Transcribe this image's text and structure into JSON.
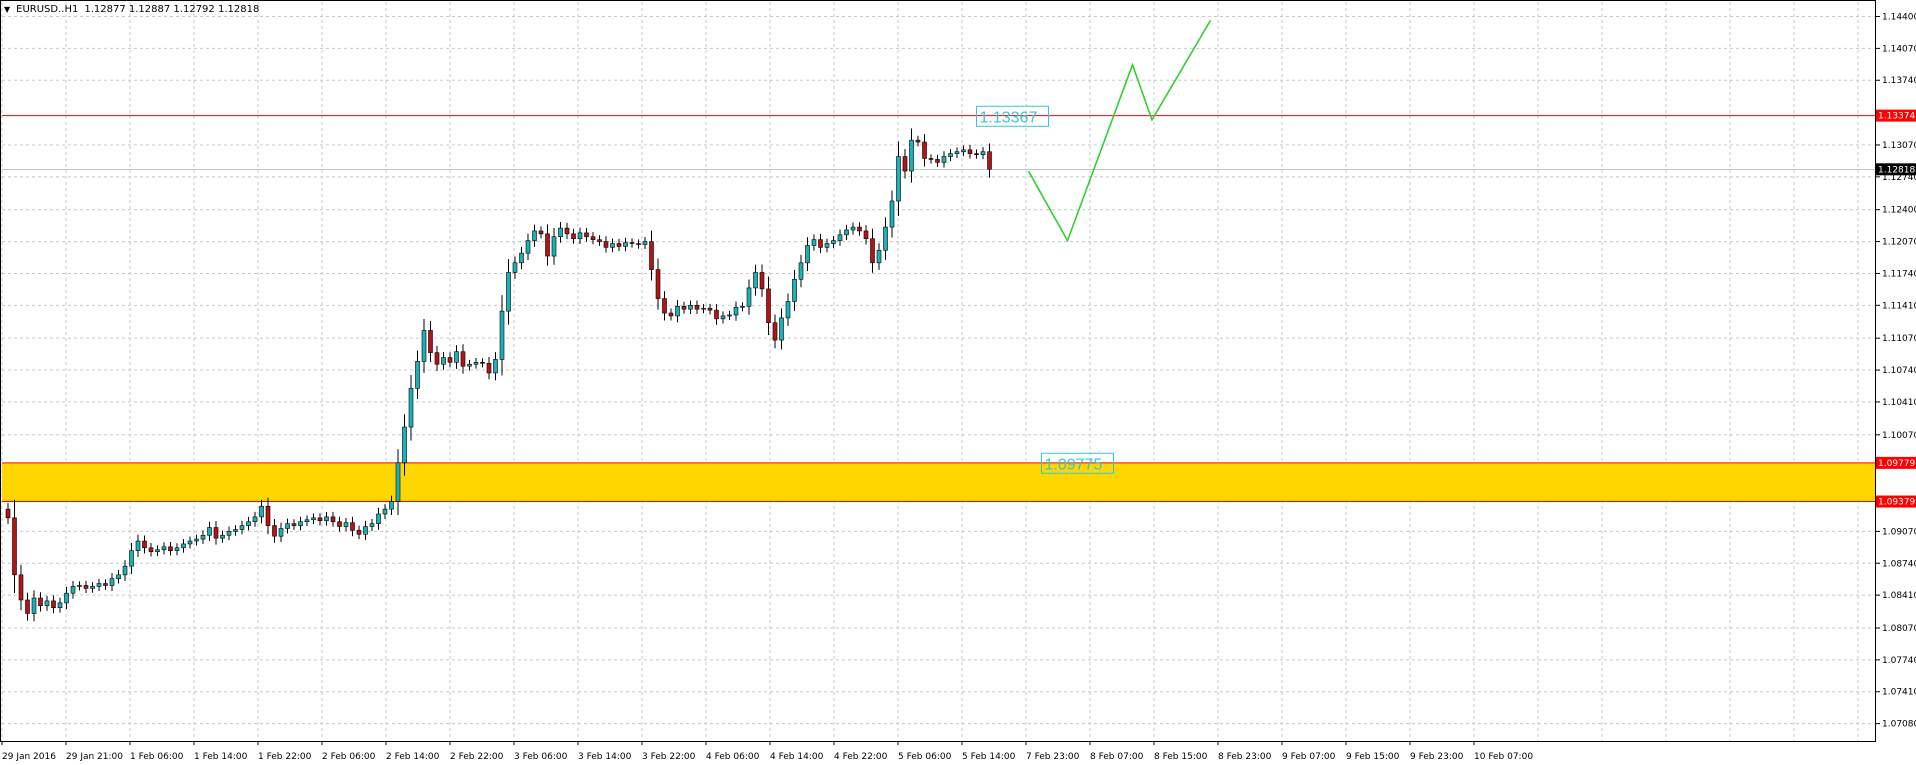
{
  "header": {
    "symbol": "EURUSD..H1",
    "ohlc": "1.12877 1.12887 1.12792 1.12818",
    "menu_icon": "triangle-down-icon"
  },
  "colors": {
    "background": "#ffffff",
    "grid": "#c8c8c8",
    "bull": "#1ab1b8",
    "bear": "#b41414",
    "resistance": "#ff0000",
    "zone_fill": "#ffd700",
    "projection": "#32cd32",
    "box_label": "#30c8d8",
    "price_tag_bg": "#000000"
  },
  "chart_data": {
    "type": "candlestick",
    "timeframe": "H1",
    "grid": true,
    "ylim": [
      1.069,
      1.1455
    ],
    "y_ticks": [
      "1.14400",
      "1.14070",
      "1.13740",
      "1.13070",
      "1.12740",
      "1.12400",
      "1.12070",
      "1.11740",
      "1.11410",
      "1.11070",
      "1.10740",
      "1.10410",
      "1.10070",
      "1.09070",
      "1.08740",
      "1.08410",
      "1.08070",
      "1.07740",
      "1.07410",
      "1.07080"
    ],
    "x_labels": [
      "29 Jan 2016",
      "29 Jan 21:00",
      "1 Feb 06:00",
      "1 Feb 14:00",
      "1 Feb 22:00",
      "2 Feb 06:00",
      "2 Feb 14:00",
      "2 Feb 22:00",
      "3 Feb 06:00",
      "3 Feb 14:00",
      "3 Feb 22:00",
      "4 Feb 06:00",
      "4 Feb 14:00",
      "4 Feb 22:00",
      "5 Feb 06:00",
      "5 Feb 14:00",
      "7 Feb 23:00",
      "8 Feb 07:00",
      "8 Feb 15:00",
      "8 Feb 23:00",
      "9 Feb 07:00",
      "9 Feb 15:00",
      "9 Feb 23:00",
      "10 Feb 07:00"
    ],
    "current_price": "1.12818",
    "levels": [
      {
        "price": 1.13374,
        "label": "1.13374",
        "kind": "resistance-line"
      },
      {
        "price": 1.09779,
        "label": "1.09779",
        "kind": "zone-top"
      },
      {
        "price": 1.09379,
        "label": "1.09379",
        "kind": "zone-bottom"
      }
    ],
    "annotations": [
      {
        "text": "1.13367",
        "price": 1.13367,
        "index": 149
      },
      {
        "text": "1.09775",
        "price": 1.09775,
        "index": 159
      }
    ],
    "closes": [
      1.0921,
      1.0862,
      1.0836,
      1.0822,
      1.0838,
      1.083,
      1.0835,
      1.0828,
      1.0833,
      1.0843,
      1.085,
      1.0851,
      1.0848,
      1.085,
      1.0853,
      1.0851,
      1.0858,
      1.0862,
      1.0871,
      1.0887,
      1.0897,
      1.089,
      1.0886,
      1.0888,
      1.0891,
      1.0887,
      1.089,
      1.0894,
      1.0897,
      1.0899,
      1.0903,
      1.0911,
      1.09,
      1.0903,
      1.0907,
      1.0909,
      1.0913,
      1.0917,
      1.0922,
      1.0933,
      1.0913,
      1.0902,
      1.091,
      1.0915,
      1.0913,
      1.0917,
      1.0919,
      1.0921,
      1.0918,
      1.0922,
      1.0917,
      1.0912,
      1.0916,
      1.0908,
      1.0904,
      1.0912,
      1.0915,
      1.0925,
      1.093,
      1.0938,
      1.0978,
      1.1015,
      1.1055,
      1.1083,
      1.1115,
      1.1092,
      1.108,
      1.1087,
      1.1082,
      1.1093,
      1.1078,
      1.108,
      1.1082,
      1.1081,
      1.1071,
      1.1085,
      1.1135,
      1.1175,
      1.1185,
      1.1195,
      1.1208,
      1.1218,
      1.1215,
      1.1192,
      1.1212,
      1.1221,
      1.1215,
      1.121,
      1.1216,
      1.1212,
      1.1209,
      1.1207,
      1.1201,
      1.1205,
      1.1202,
      1.1206,
      1.1205,
      1.1204,
      1.1207,
      1.1178,
      1.1148,
      1.1133,
      1.113,
      1.114,
      1.1137,
      1.1141,
      1.1137,
      1.1138,
      1.1136,
      1.1127,
      1.113,
      1.1131,
      1.1139,
      1.114,
      1.1159,
      1.1175,
      1.1158,
      1.1123,
      1.1105,
      1.1128,
      1.1145,
      1.1168,
      1.1185,
      1.1203,
      1.1209,
      1.1201,
      1.1205,
      1.1208,
      1.1214,
      1.1219,
      1.1222,
      1.1218,
      1.121,
      1.1185,
      1.1198,
      1.1222,
      1.1249,
      1.1295,
      1.128,
      1.1312,
      1.131,
      1.1293,
      1.1292,
      1.1289,
      1.1295,
      1.1298,
      1.13,
      1.1302,
      1.1298,
      1.1297,
      1.13,
      1.12818
    ],
    "projection_path": [
      {
        "index": 157,
        "price": 1.128
      },
      {
        "index": 163,
        "price": 1.1208
      },
      {
        "index": 173,
        "price": 1.139
      },
      {
        "index": 176,
        "price": 1.1333
      },
      {
        "index": 185,
        "price": 1.1436
      }
    ]
  }
}
